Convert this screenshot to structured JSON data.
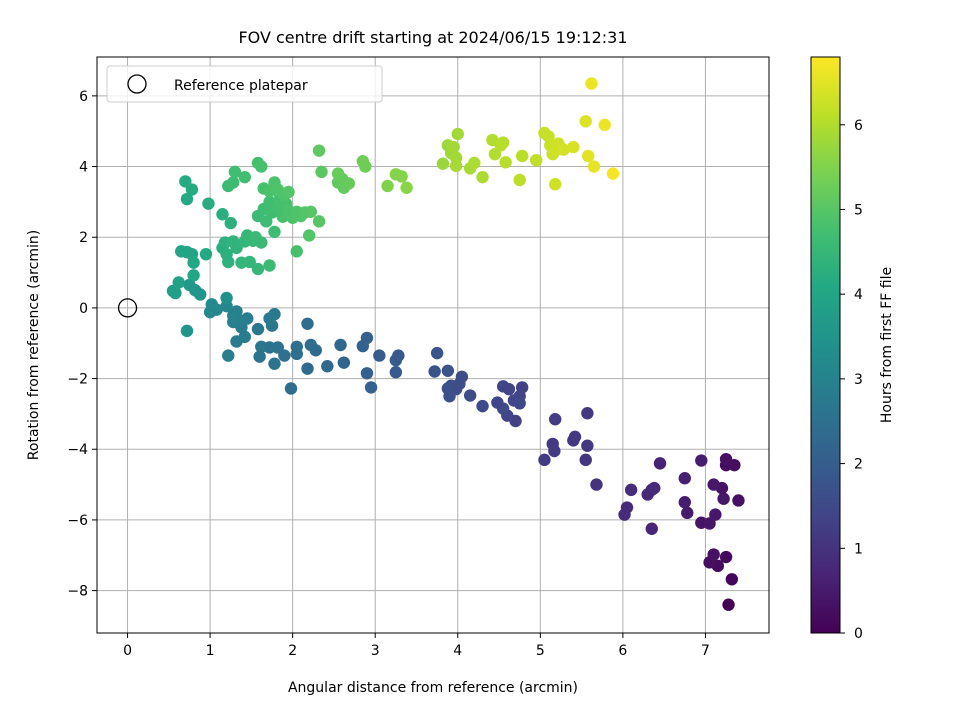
{
  "chart_data": {
    "type": "scatter",
    "title": "FOV centre drift starting at 2024/06/15 19:12:31",
    "xlabel": "Angular distance from reference (arcmin)",
    "ylabel": "Rotation from reference (arcmin)",
    "xlim": [
      -0.37,
      7.77
    ],
    "ylim": [
      -9.2,
      7.1
    ],
    "xticks": [
      0,
      1,
      2,
      3,
      4,
      5,
      6,
      7
    ],
    "yticks": [
      -8,
      -6,
      -4,
      -2,
      0,
      2,
      4,
      6
    ],
    "grid": true,
    "legend": {
      "position": "top-left",
      "entries": [
        {
          "label": "Reference platepar",
          "marker": "open-circle"
        }
      ]
    },
    "reference_point": {
      "x": 0,
      "y": 0
    },
    "colorbar": {
      "label": "Hours from first FF file",
      "colormap": "viridis",
      "range": [
        0,
        6.8
      ],
      "ticks": [
        0,
        1,
        2,
        3,
        4,
        5,
        6
      ]
    },
    "points": [
      {
        "x": 7.28,
        "y": -8.4,
        "t": 0.05
      },
      {
        "x": 7.32,
        "y": -7.68,
        "t": 0.1
      },
      {
        "x": 7.25,
        "y": -7.05,
        "t": 0.15
      },
      {
        "x": 7.15,
        "y": -7.3,
        "t": 0.2
      },
      {
        "x": 7.05,
        "y": -7.2,
        "t": 0.25
      },
      {
        "x": 7.1,
        "y": -6.98,
        "t": 0.3
      },
      {
        "x": 6.95,
        "y": -6.08,
        "t": 0.35
      },
      {
        "x": 7.05,
        "y": -6.1,
        "t": 0.4
      },
      {
        "x": 7.12,
        "y": -5.85,
        "t": 0.45
      },
      {
        "x": 6.78,
        "y": -5.8,
        "t": 0.5
      },
      {
        "x": 6.75,
        "y": -5.5,
        "t": 0.55
      },
      {
        "x": 7.22,
        "y": -5.4,
        "t": 0.4
      },
      {
        "x": 7.4,
        "y": -5.45,
        "t": 0.3
      },
      {
        "x": 7.2,
        "y": -5.1,
        "t": 0.35
      },
      {
        "x": 7.1,
        "y": -5.0,
        "t": 0.45
      },
      {
        "x": 7.25,
        "y": -4.45,
        "t": 0.2
      },
      {
        "x": 7.35,
        "y": -4.45,
        "t": 0.25
      },
      {
        "x": 7.25,
        "y": -4.28,
        "t": 0.3
      },
      {
        "x": 6.95,
        "y": -4.32,
        "t": 0.55
      },
      {
        "x": 6.75,
        "y": -4.82,
        "t": 0.6
      },
      {
        "x": 6.45,
        "y": -4.4,
        "t": 0.65
      },
      {
        "x": 6.35,
        "y": -5.15,
        "t": 0.7
      },
      {
        "x": 6.3,
        "y": -5.28,
        "t": 0.75
      },
      {
        "x": 6.38,
        "y": -5.1,
        "t": 0.8
      },
      {
        "x": 6.1,
        "y": -5.15,
        "t": 0.85
      },
      {
        "x": 6.35,
        "y": -6.25,
        "t": 0.7
      },
      {
        "x": 6.05,
        "y": -5.65,
        "t": 0.8
      },
      {
        "x": 6.02,
        "y": -5.85,
        "t": 0.85
      },
      {
        "x": 5.68,
        "y": -5.0,
        "t": 1.0
      },
      {
        "x": 5.55,
        "y": -4.3,
        "t": 1.05
      },
      {
        "x": 5.57,
        "y": -3.9,
        "t": 1.1
      },
      {
        "x": 5.42,
        "y": -3.65,
        "t": 1.15
      },
      {
        "x": 5.4,
        "y": -3.75,
        "t": 1.1
      },
      {
        "x": 5.57,
        "y": -2.98,
        "t": 1.1
      },
      {
        "x": 5.18,
        "y": -3.15,
        "t": 1.2
      },
      {
        "x": 5.15,
        "y": -3.85,
        "t": 1.15
      },
      {
        "x": 5.17,
        "y": -4.05,
        "t": 1.2
      },
      {
        "x": 5.05,
        "y": -4.3,
        "t": 1.2
      },
      {
        "x": 4.7,
        "y": -3.2,
        "t": 1.3
      },
      {
        "x": 4.6,
        "y": -3.05,
        "t": 1.35
      },
      {
        "x": 4.55,
        "y": -2.22,
        "t": 1.4
      },
      {
        "x": 4.62,
        "y": -2.3,
        "t": 1.35
      },
      {
        "x": 4.78,
        "y": -2.25,
        "t": 1.3
      },
      {
        "x": 4.75,
        "y": -2.5,
        "t": 1.35
      },
      {
        "x": 4.68,
        "y": -2.62,
        "t": 1.4
      },
      {
        "x": 4.75,
        "y": -2.7,
        "t": 1.45
      },
      {
        "x": 4.55,
        "y": -2.85,
        "t": 1.5
      },
      {
        "x": 4.48,
        "y": -2.68,
        "t": 1.4
      },
      {
        "x": 4.3,
        "y": -2.78,
        "t": 1.5
      },
      {
        "x": 4.15,
        "y": -2.48,
        "t": 1.55
      },
      {
        "x": 4.05,
        "y": -1.95,
        "t": 1.6
      },
      {
        "x": 4.02,
        "y": -2.15,
        "t": 1.55
      },
      {
        "x": 3.92,
        "y": -2.2,
        "t": 1.6
      },
      {
        "x": 3.88,
        "y": -2.28,
        "t": 1.65
      },
      {
        "x": 3.98,
        "y": -2.3,
        "t": 1.6
      },
      {
        "x": 3.9,
        "y": -2.5,
        "t": 1.65
      },
      {
        "x": 3.88,
        "y": -1.78,
        "t": 1.7
      },
      {
        "x": 3.72,
        "y": -1.8,
        "t": 1.75
      },
      {
        "x": 3.75,
        "y": -1.28,
        "t": 1.8
      },
      {
        "x": 3.28,
        "y": -1.35,
        "t": 1.9
      },
      {
        "x": 3.25,
        "y": -1.48,
        "t": 1.95
      },
      {
        "x": 3.25,
        "y": -1.82,
        "t": 1.95
      },
      {
        "x": 3.05,
        "y": -1.35,
        "t": 2.0
      },
      {
        "x": 2.9,
        "y": -0.85,
        "t": 2.05
      },
      {
        "x": 2.85,
        "y": -1.08,
        "t": 2.1
      },
      {
        "x": 2.9,
        "y": -1.85,
        "t": 2.05
      },
      {
        "x": 2.95,
        "y": -2.25,
        "t": 2.1
      },
      {
        "x": 2.62,
        "y": -1.55,
        "t": 2.2
      },
      {
        "x": 2.58,
        "y": -1.05,
        "t": 2.25
      },
      {
        "x": 2.42,
        "y": -1.65,
        "t": 2.3
      },
      {
        "x": 2.28,
        "y": -1.2,
        "t": 2.35
      },
      {
        "x": 2.22,
        "y": -1.05,
        "t": 2.4
      },
      {
        "x": 2.18,
        "y": -0.45,
        "t": 2.4
      },
      {
        "x": 2.18,
        "y": -1.72,
        "t": 2.35
      },
      {
        "x": 2.05,
        "y": -1.1,
        "t": 2.45
      },
      {
        "x": 2.05,
        "y": -1.3,
        "t": 2.45
      },
      {
        "x": 1.98,
        "y": -2.28,
        "t": 2.4
      },
      {
        "x": 1.9,
        "y": -1.35,
        "t": 2.5
      },
      {
        "x": 1.82,
        "y": -1.12,
        "t": 2.55
      },
      {
        "x": 1.78,
        "y": -1.58,
        "t": 2.6
      },
      {
        "x": 1.72,
        "y": -1.12,
        "t": 2.6
      },
      {
        "x": 1.75,
        "y": -0.5,
        "t": 2.7
      },
      {
        "x": 1.72,
        "y": -0.3,
        "t": 2.75
      },
      {
        "x": 1.78,
        "y": -0.18,
        "t": 2.75
      },
      {
        "x": 1.62,
        "y": -1.1,
        "t": 2.65
      },
      {
        "x": 1.6,
        "y": -1.38,
        "t": 2.6
      },
      {
        "x": 1.58,
        "y": -0.6,
        "t": 2.7
      },
      {
        "x": 1.42,
        "y": -0.82,
        "t": 2.8
      },
      {
        "x": 1.45,
        "y": -0.3,
        "t": 2.85
      },
      {
        "x": 1.38,
        "y": -0.55,
        "t": 2.8
      },
      {
        "x": 1.32,
        "y": -0.95,
        "t": 2.8
      },
      {
        "x": 1.35,
        "y": -0.35,
        "t": 2.9
      },
      {
        "x": 1.32,
        "y": -0.1,
        "t": 2.9
      },
      {
        "x": 1.28,
        "y": -0.4,
        "t": 2.95
      },
      {
        "x": 1.28,
        "y": -0.22,
        "t": 3.0
      },
      {
        "x": 1.22,
        "y": -1.35,
        "t": 2.85
      },
      {
        "x": 1.2,
        "y": 0.05,
        "t": 3.1
      },
      {
        "x": 1.08,
        "y": -0.05,
        "t": 3.15
      },
      {
        "x": 1.02,
        "y": 0.1,
        "t": 3.2
      },
      {
        "x": 1.0,
        "y": -0.12,
        "t": 3.15
      },
      {
        "x": 1.2,
        "y": 0.28,
        "t": 3.4
      },
      {
        "x": 0.88,
        "y": 0.38,
        "t": 3.5
      },
      {
        "x": 0.82,
        "y": 0.5,
        "t": 3.55
      },
      {
        "x": 0.75,
        "y": 0.65,
        "t": 3.6
      },
      {
        "x": 0.72,
        "y": -0.65,
        "t": 3.5
      },
      {
        "x": 0.55,
        "y": 0.48,
        "t": 3.8
      },
      {
        "x": 0.58,
        "y": 0.42,
        "t": 3.85
      },
      {
        "x": 0.62,
        "y": 0.72,
        "t": 3.9
      },
      {
        "x": 0.65,
        "y": 1.6,
        "t": 3.95
      },
      {
        "x": 0.72,
        "y": 1.58,
        "t": 4.0
      },
      {
        "x": 0.78,
        "y": 1.52,
        "t": 4.0
      },
      {
        "x": 0.8,
        "y": 1.28,
        "t": 4.05
      },
      {
        "x": 0.8,
        "y": 0.92,
        "t": 4.05
      },
      {
        "x": 0.95,
        "y": 1.52,
        "t": 4.1
      },
      {
        "x": 0.72,
        "y": 3.08,
        "t": 4.1
      },
      {
        "x": 0.7,
        "y": 3.58,
        "t": 4.15
      },
      {
        "x": 0.78,
        "y": 3.35,
        "t": 4.15
      },
      {
        "x": 0.98,
        "y": 2.95,
        "t": 4.2
      },
      {
        "x": 1.15,
        "y": 2.65,
        "t": 4.25
      },
      {
        "x": 1.25,
        "y": 2.4,
        "t": 4.3
      },
      {
        "x": 1.15,
        "y": 1.7,
        "t": 4.25
      },
      {
        "x": 1.18,
        "y": 1.85,
        "t": 4.3
      },
      {
        "x": 1.22,
        "y": 1.3,
        "t": 4.35
      },
      {
        "x": 1.2,
        "y": 1.52,
        "t": 4.3
      },
      {
        "x": 1.28,
        "y": 1.88,
        "t": 4.4
      },
      {
        "x": 1.32,
        "y": 1.7,
        "t": 4.4
      },
      {
        "x": 1.38,
        "y": 1.28,
        "t": 4.45
      },
      {
        "x": 1.42,
        "y": 1.88,
        "t": 4.45
      },
      {
        "x": 1.45,
        "y": 2.05,
        "t": 4.5
      },
      {
        "x": 1.48,
        "y": 1.3,
        "t": 4.45
      },
      {
        "x": 1.52,
        "y": 1.9,
        "t": 4.5
      },
      {
        "x": 1.55,
        "y": 2.0,
        "t": 4.55
      },
      {
        "x": 1.58,
        "y": 1.1,
        "t": 4.5
      },
      {
        "x": 1.62,
        "y": 1.85,
        "t": 4.55
      },
      {
        "x": 1.72,
        "y": 1.2,
        "t": 4.6
      },
      {
        "x": 1.58,
        "y": 2.6,
        "t": 4.6
      },
      {
        "x": 1.65,
        "y": 2.8,
        "t": 4.65
      },
      {
        "x": 1.68,
        "y": 2.45,
        "t": 4.65
      },
      {
        "x": 1.72,
        "y": 3.0,
        "t": 4.7
      },
      {
        "x": 1.75,
        "y": 2.7,
        "t": 4.7
      },
      {
        "x": 1.78,
        "y": 2.15,
        "t": 4.65
      },
      {
        "x": 1.82,
        "y": 2.85,
        "t": 4.75
      },
      {
        "x": 1.85,
        "y": 3.15,
        "t": 4.75
      },
      {
        "x": 1.88,
        "y": 2.58,
        "t": 4.8
      },
      {
        "x": 1.92,
        "y": 2.95,
        "t": 4.8
      },
      {
        "x": 1.95,
        "y": 2.75,
        "t": 4.85
      },
      {
        "x": 2.0,
        "y": 2.55,
        "t": 4.85
      },
      {
        "x": 2.05,
        "y": 1.6,
        "t": 4.8
      },
      {
        "x": 2.05,
        "y": 2.72,
        "t": 4.9
      },
      {
        "x": 2.1,
        "y": 2.6,
        "t": 4.9
      },
      {
        "x": 2.15,
        "y": 2.7,
        "t": 4.95
      },
      {
        "x": 2.2,
        "y": 2.05,
        "t": 4.95
      },
      {
        "x": 2.22,
        "y": 2.72,
        "t": 5.0
      },
      {
        "x": 2.32,
        "y": 2.45,
        "t": 5.0
      },
      {
        "x": 1.22,
        "y": 3.45,
        "t": 4.6
      },
      {
        "x": 1.28,
        "y": 3.55,
        "t": 4.65
      },
      {
        "x": 1.3,
        "y": 3.85,
        "t": 4.7
      },
      {
        "x": 1.42,
        "y": 3.7,
        "t": 4.7
      },
      {
        "x": 1.58,
        "y": 4.1,
        "t": 4.75
      },
      {
        "x": 1.62,
        "y": 4.0,
        "t": 4.8
      },
      {
        "x": 1.65,
        "y": 3.38,
        "t": 4.8
      },
      {
        "x": 1.72,
        "y": 3.3,
        "t": 4.85
      },
      {
        "x": 1.78,
        "y": 3.55,
        "t": 4.85
      },
      {
        "x": 1.82,
        "y": 3.35,
        "t": 4.9
      },
      {
        "x": 1.9,
        "y": 3.2,
        "t": 4.9
      },
      {
        "x": 1.95,
        "y": 3.28,
        "t": 4.95
      },
      {
        "x": 2.35,
        "y": 3.85,
        "t": 5.05
      },
      {
        "x": 2.32,
        "y": 4.45,
        "t": 5.1
      },
      {
        "x": 2.55,
        "y": 3.55,
        "t": 5.1
      },
      {
        "x": 2.6,
        "y": 3.65,
        "t": 5.15
      },
      {
        "x": 2.62,
        "y": 3.4,
        "t": 5.15
      },
      {
        "x": 2.68,
        "y": 3.52,
        "t": 5.2
      },
      {
        "x": 2.55,
        "y": 3.8,
        "t": 5.2
      },
      {
        "x": 2.85,
        "y": 4.15,
        "t": 5.3
      },
      {
        "x": 2.88,
        "y": 4.0,
        "t": 5.3
      },
      {
        "x": 3.15,
        "y": 3.45,
        "t": 5.5
      },
      {
        "x": 3.25,
        "y": 3.78,
        "t": 5.55
      },
      {
        "x": 3.32,
        "y": 3.72,
        "t": 5.55
      },
      {
        "x": 3.38,
        "y": 3.4,
        "t": 5.6
      },
      {
        "x": 3.82,
        "y": 4.08,
        "t": 5.75
      },
      {
        "x": 3.88,
        "y": 4.6,
        "t": 5.8
      },
      {
        "x": 3.92,
        "y": 4.38,
        "t": 5.8
      },
      {
        "x": 3.95,
        "y": 4.55,
        "t": 5.85
      },
      {
        "x": 3.98,
        "y": 4.25,
        "t": 5.85
      },
      {
        "x": 3.98,
        "y": 4.02,
        "t": 5.9
      },
      {
        "x": 4.0,
        "y": 4.92,
        "t": 5.85
      },
      {
        "x": 4.15,
        "y": 3.95,
        "t": 5.9
      },
      {
        "x": 4.2,
        "y": 4.1,
        "t": 5.95
      },
      {
        "x": 4.3,
        "y": 3.7,
        "t": 5.95
      },
      {
        "x": 4.42,
        "y": 4.75,
        "t": 6.0
      },
      {
        "x": 4.45,
        "y": 4.35,
        "t": 6.0
      },
      {
        "x": 4.52,
        "y": 4.6,
        "t": 6.05
      },
      {
        "x": 4.58,
        "y": 4.12,
        "t": 6.05
      },
      {
        "x": 4.55,
        "y": 4.68,
        "t": 6.05
      },
      {
        "x": 4.75,
        "y": 3.62,
        "t": 6.1
      },
      {
        "x": 4.78,
        "y": 4.3,
        "t": 6.1
      },
      {
        "x": 4.95,
        "y": 4.18,
        "t": 6.15
      },
      {
        "x": 5.05,
        "y": 4.95,
        "t": 6.2
      },
      {
        "x": 5.1,
        "y": 4.85,
        "t": 6.2
      },
      {
        "x": 5.12,
        "y": 4.6,
        "t": 6.25
      },
      {
        "x": 5.15,
        "y": 4.35,
        "t": 6.25
      },
      {
        "x": 5.18,
        "y": 4.45,
        "t": 6.3
      },
      {
        "x": 5.18,
        "y": 3.5,
        "t": 6.3
      },
      {
        "x": 5.22,
        "y": 4.65,
        "t": 6.3
      },
      {
        "x": 5.28,
        "y": 4.48,
        "t": 6.35
      },
      {
        "x": 5.4,
        "y": 4.55,
        "t": 6.4
      },
      {
        "x": 5.55,
        "y": 5.28,
        "t": 6.45
      },
      {
        "x": 5.58,
        "y": 4.3,
        "t": 6.5
      },
      {
        "x": 5.65,
        "y": 4.0,
        "t": 6.55
      },
      {
        "x": 5.62,
        "y": 6.35,
        "t": 6.6
      },
      {
        "x": 5.78,
        "y": 5.18,
        "t": 6.6
      },
      {
        "x": 5.88,
        "y": 3.8,
        "t": 6.7
      }
    ]
  }
}
